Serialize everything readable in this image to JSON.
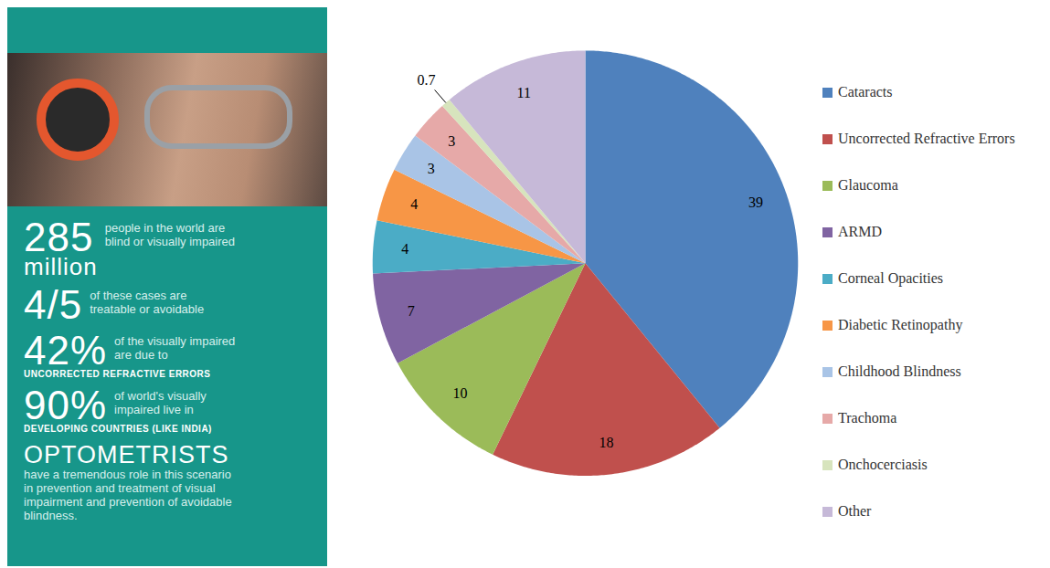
{
  "chart_data": {
    "type": "pie",
    "categories": [
      "Cataracts",
      "Uncorrected Refractive Errors",
      "Glaucoma",
      "ARMD",
      "Corneal Opacities",
      "Diabetic Retinopathy",
      "Childhood Blindness",
      "Trachoma",
      "Onchocerciasis",
      "Other"
    ],
    "values": [
      39,
      18,
      10,
      7,
      4,
      4,
      3,
      3,
      0.7,
      11
    ],
    "colors": [
      "#4f81bd",
      "#c0504d",
      "#9bbb59",
      "#8064a2",
      "#4bacc6",
      "#f79646",
      "#a9c4e6",
      "#e6a9a8",
      "#d7e4bd",
      "#c6b9d8"
    ],
    "data_labels": true,
    "legend": "right"
  },
  "panel": {
    "facts": [
      {
        "figure": "285",
        "unit": "million",
        "text": "people in the world are blind or visually impaired"
      },
      {
        "figure": "4/5",
        "text": "of these cases are treatable or avoidable"
      },
      {
        "figure": "42%",
        "text": "of the visually impaired are due to",
        "sub": "UNCORRECTED REFRACTIVE ERRORS"
      },
      {
        "figure": "90%",
        "text": "of world's visually impaired live in",
        "sub": "DEVELOPING COUNTRIES (LIKE INDIA)"
      }
    ],
    "closing": {
      "head": "OPTOMETRISTS",
      "text": "have a tremendous role in this scenario in prevention and treatment of visual impairment and prevention of avoidable blindness."
    }
  }
}
